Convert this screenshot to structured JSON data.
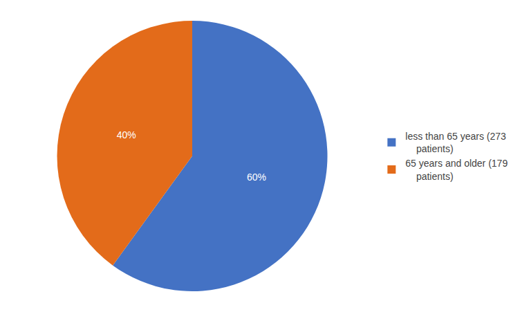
{
  "chart_data": {
    "type": "pie",
    "categories": [
      "less than 65 years (273\n    patients)",
      "65 years and older (179\n    patients)"
    ],
    "values": [
      60,
      40
    ],
    "value_labels": [
      "60%",
      "40%"
    ],
    "colors": [
      "#4472C4",
      "#E36B1A"
    ],
    "data_labels": true,
    "legend": "right"
  }
}
